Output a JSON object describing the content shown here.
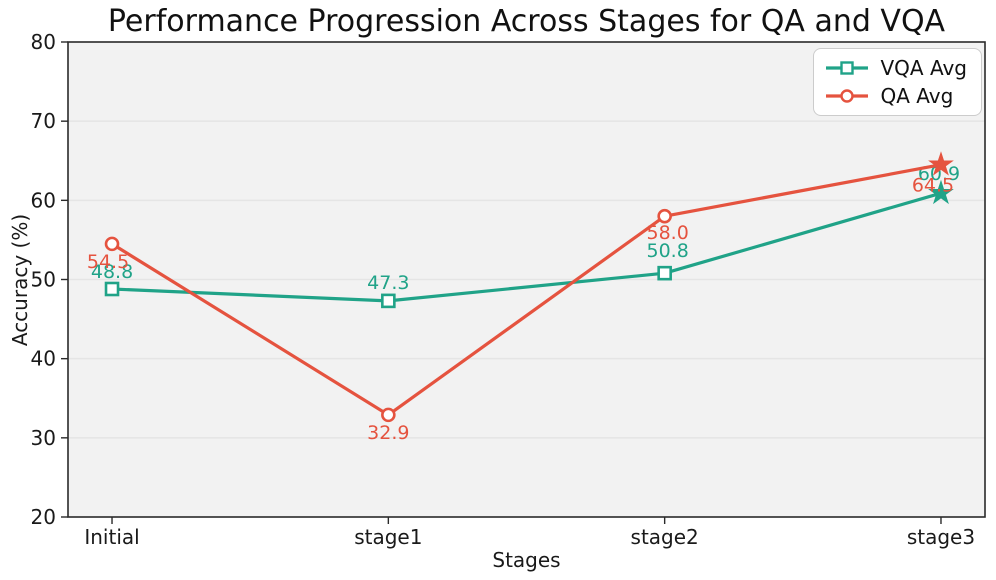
{
  "chart_data": {
    "type": "line",
    "title": "Performance Progression Across Stages for QA and VQA",
    "xlabel": "Stages",
    "ylabel": "Accuracy (%)",
    "categories": [
      "Initial",
      "stage1",
      "stage2",
      "stage3"
    ],
    "ylim": [
      20,
      80
    ],
    "yticks": [
      20,
      30,
      40,
      50,
      60,
      70,
      80
    ],
    "grid": true,
    "legend_position": "upper right",
    "series": [
      {
        "name": "VQA Avg",
        "color": "#20a388",
        "marker": "square",
        "final_marker": "star",
        "values": [
          48.8,
          47.3,
          50.8,
          60.9
        ]
      },
      {
        "name": "QA Avg",
        "color": "#e5533f",
        "marker": "circle",
        "final_marker": "star",
        "values": [
          54.5,
          32.9,
          58.0,
          64.5
        ]
      }
    ],
    "value_label_decimals": 1
  },
  "colors": {
    "plot_bg": "#f2f2f2",
    "grid": "#e5e5e5",
    "spine": "#2a2a2a",
    "tick_text": "#1a1a1a"
  }
}
